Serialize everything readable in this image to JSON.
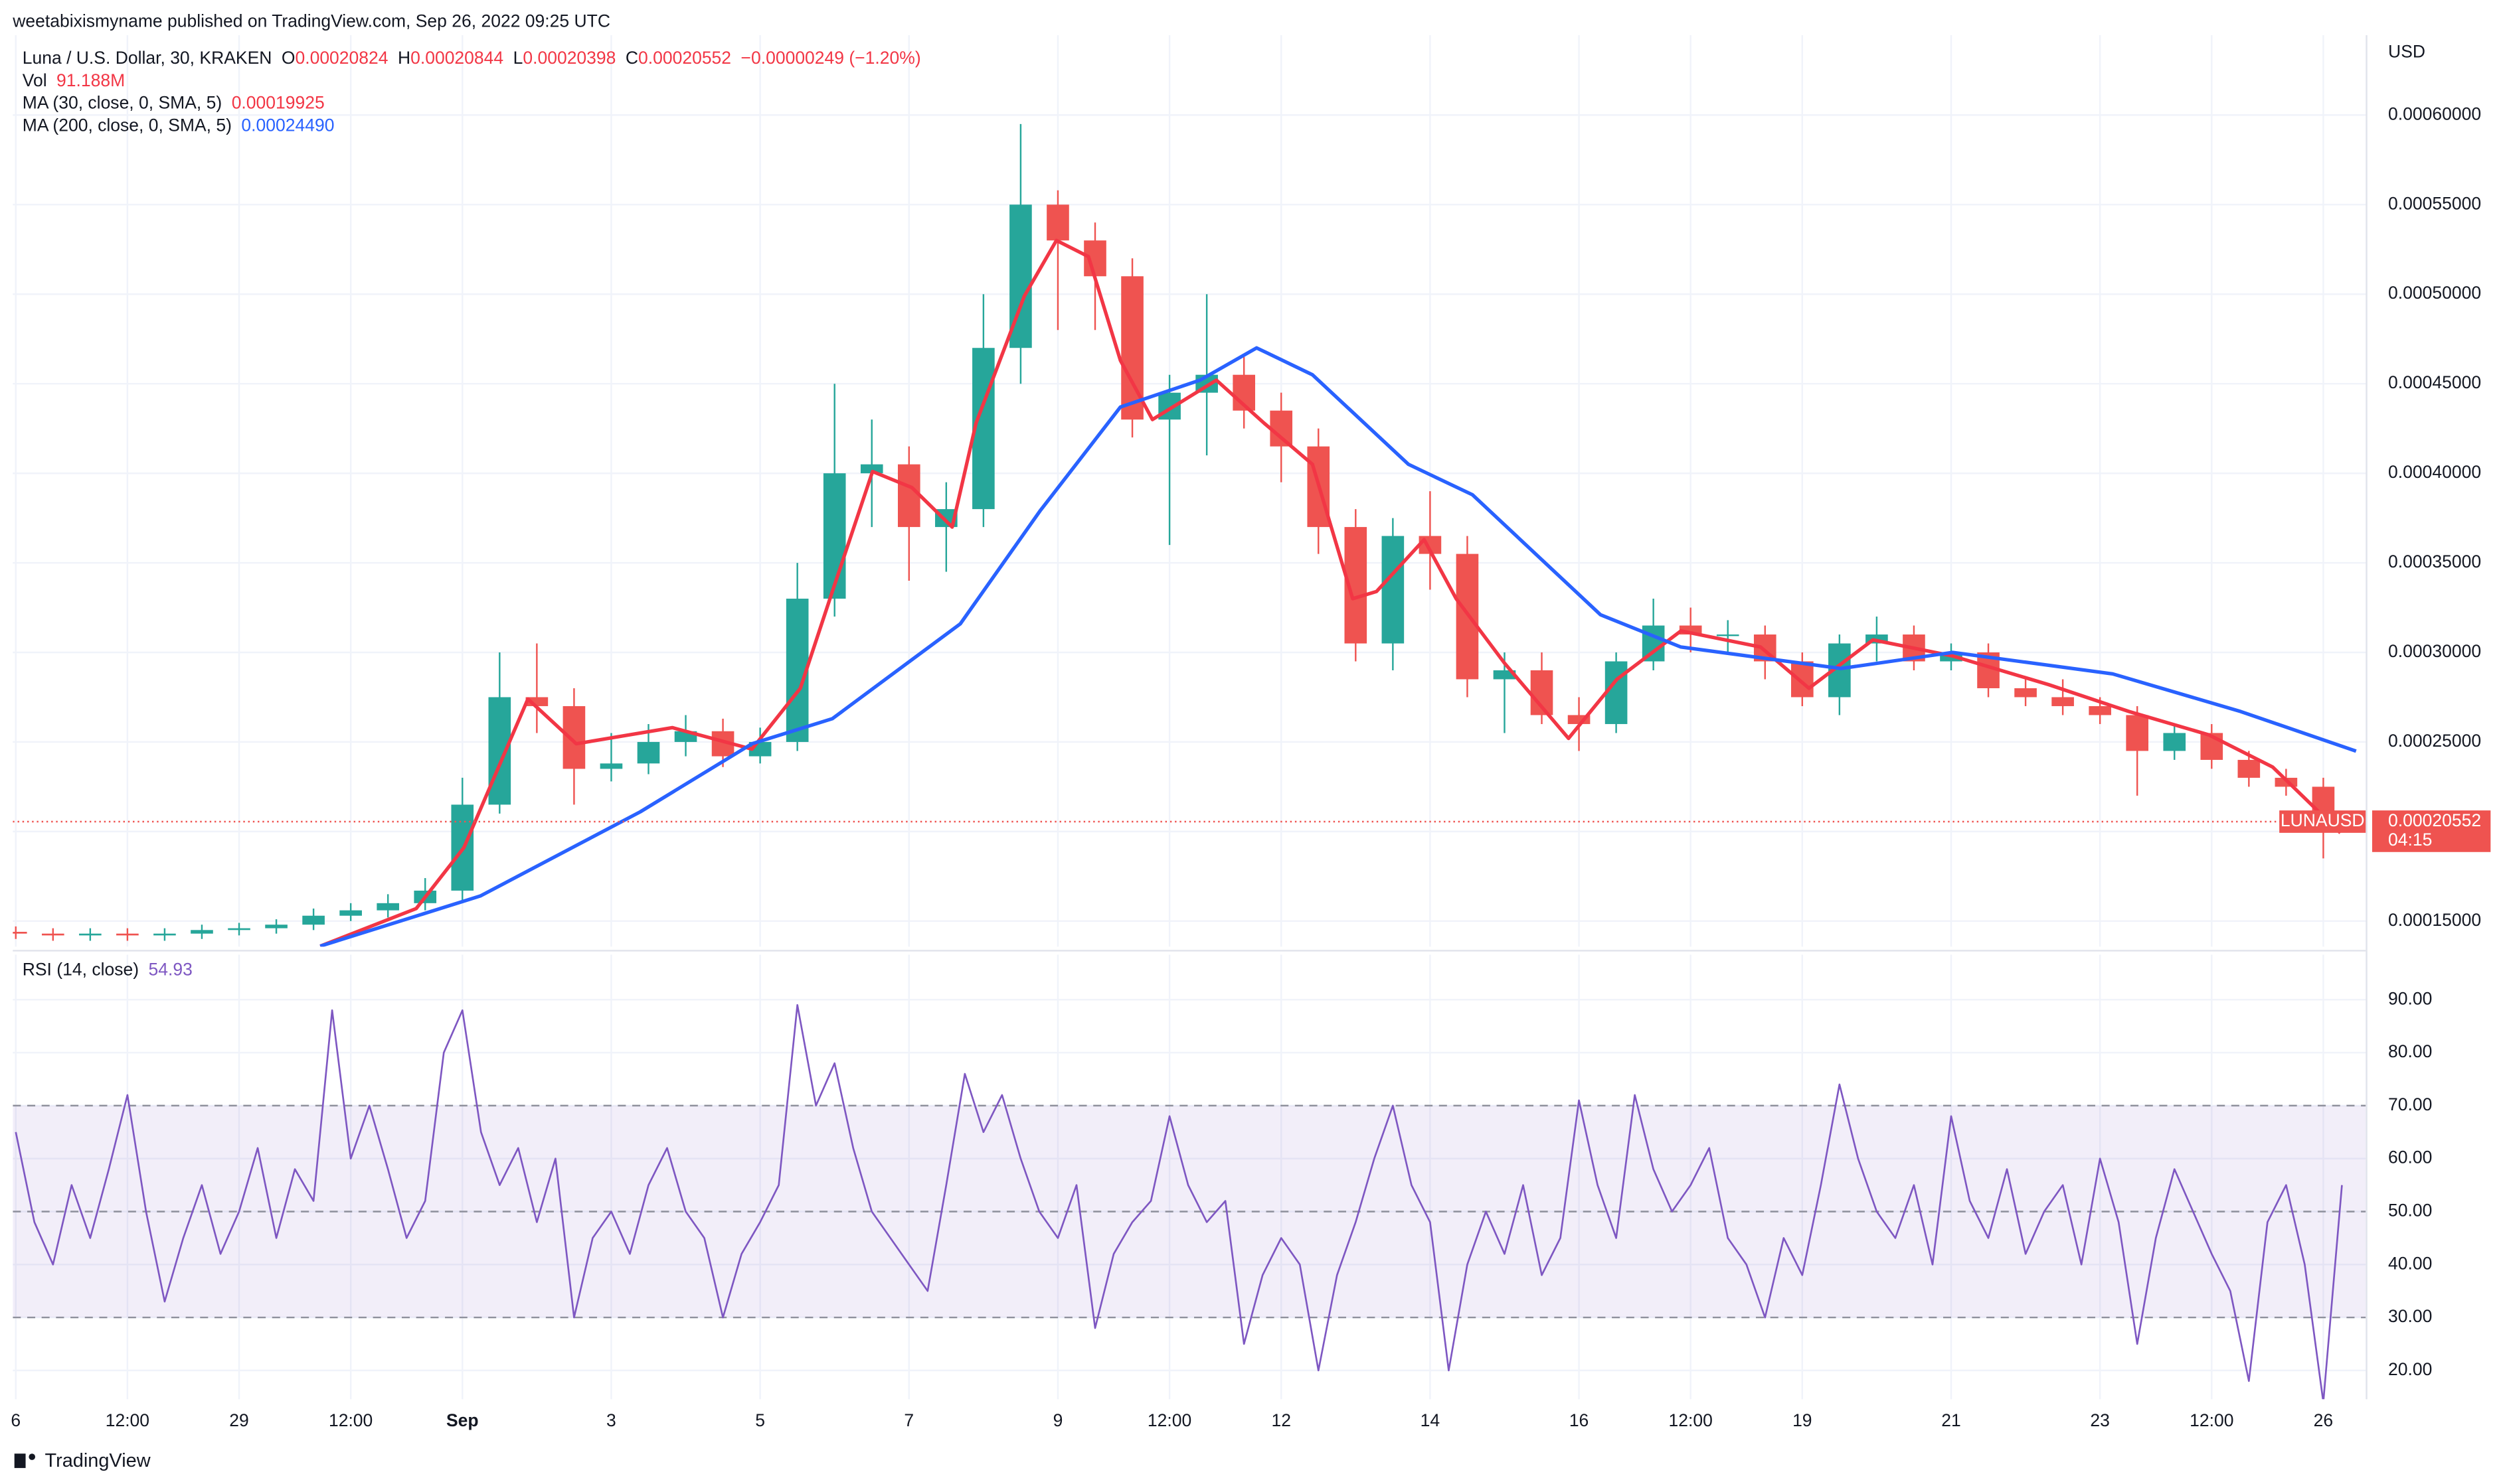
{
  "header": {
    "published": "weetabixismyname published on TradingView.com, Sep 26, 2022 09:25 UTC"
  },
  "footer": {
    "brand": "TradingView"
  },
  "chart_data": [
    {
      "type": "candlestick",
      "title": "Luna / U.S. Dollar, 30, KRAKEN",
      "ohlc_legend": [
        {
          "key": "O",
          "value": "0.00020824"
        },
        {
          "key": "H",
          "value": "0.00020844"
        },
        {
          "key": "L",
          "value": "0.00020398"
        },
        {
          "key": "C",
          "value": "0.00020552"
        }
      ],
      "change": "−0.00000249 (−1.20%)",
      "volume_label": "Vol",
      "volume_value": "91.188M",
      "ylabel": "USD",
      "up_color": "#26a69a",
      "down_color": "#ef5350",
      "xlim": [
        25.96,
        57.57
      ],
      "xticks": [
        {
          "value": 26,
          "label": "6"
        },
        {
          "value": 27.5,
          "label": "12:00"
        },
        29,
        {
          "value": 30.5,
          "label": "12:00"
        },
        {
          "value": 32,
          "label": "Sep"
        },
        {
          "value": 34,
          "label": "3"
        },
        {
          "value": 36,
          "label": "5"
        },
        {
          "value": 38,
          "label": "7"
        },
        {
          "value": 40,
          "label": "9"
        },
        {
          "value": 41.5,
          "label": "12:00"
        },
        {
          "value": 43,
          "label": "12"
        },
        {
          "value": 45,
          "label": "14"
        },
        {
          "value": 47,
          "label": "16"
        },
        {
          "value": 48.5,
          "label": "12:00"
        },
        {
          "value": 50,
          "label": "19"
        },
        {
          "value": 52,
          "label": "21"
        },
        {
          "value": 54,
          "label": "23"
        },
        {
          "value": 55.5,
          "label": "12:00"
        },
        {
          "value": 57,
          "label": "26"
        }
      ],
      "ylim": [
        0.0001357,
        0.0006446
      ],
      "yticks": [
        {
          "value": 0.00015,
          "label": "0.00015000"
        },
        {
          "value": 0.0002,
          "label": "0.00020000"
        },
        {
          "value": 0.00025,
          "label": "0.00025000"
        },
        {
          "value": 0.0003,
          "label": "0.00030000"
        },
        {
          "value": 0.00035,
          "label": "0.00035000"
        },
        {
          "value": 0.0004,
          "label": "0.00040000"
        },
        {
          "value": 0.00045,
          "label": "0.00045000"
        },
        {
          "value": 0.0005,
          "label": "0.00050000"
        },
        {
          "value": 0.00055,
          "label": "0.00055000"
        },
        {
          "value": 0.0006,
          "label": "0.00060000"
        }
      ],
      "grid": true,
      "last_price": 0.00020552,
      "symbol": "LUNAUSD",
      "countdown": "04:15",
      "candles": {
        "x": [
          26,
          26.5,
          27,
          27.5,
          28,
          28.5,
          29,
          29.5,
          30,
          30.5,
          31,
          31.5,
          32,
          32.5,
          33,
          33.5,
          34,
          34.5,
          35,
          35.5,
          36,
          36.5,
          37,
          37.5,
          38,
          38.5,
          39,
          39.5,
          40,
          40.5,
          41,
          41.5,
          42,
          42.5,
          43,
          43.5,
          44,
          44.5,
          45,
          45.5,
          46,
          46.5,
          47,
          47.5,
          48,
          48.5,
          49,
          49.5,
          50,
          50.5,
          51,
          51.5,
          52,
          52.5,
          53,
          53.5,
          54,
          54.5,
          55,
          55.5,
          56,
          56.5,
          57
        ],
        "open": [
          0.000144,
          0.000143,
          0.000142,
          0.000143,
          0.000142,
          0.000143,
          0.000145,
          0.000146,
          0.000148,
          0.000153,
          0.000156,
          0.00016,
          0.000167,
          0.000215,
          0.000275,
          0.00027,
          0.000235,
          0.000238,
          0.00025,
          0.000256,
          0.000242,
          0.00025,
          0.00033,
          0.0004,
          0.000405,
          0.00037,
          0.00038,
          0.00047,
          0.00055,
          0.00053,
          0.00051,
          0.00043,
          0.000445,
          0.000455,
          0.000435,
          0.000415,
          0.00037,
          0.000305,
          0.000365,
          0.000355,
          0.000285,
          0.00029,
          0.000265,
          0.00026,
          0.000295,
          0.000315,
          0.00031,
          0.00031,
          0.000295,
          0.000275,
          0.000305,
          0.00031,
          0.000295,
          0.0003,
          0.00028,
          0.000275,
          0.00027,
          0.000265,
          0.000245,
          0.000255,
          0.00024,
          0.00023,
          0.000225
        ],
        "high": [
          0.000147,
          0.000146,
          0.000146,
          0.000146,
          0.000146,
          0.000148,
          0.000149,
          0.000151,
          0.000157,
          0.00016,
          0.000165,
          0.000174,
          0.00023,
          0.0003,
          0.000305,
          0.00028,
          0.000255,
          0.00026,
          0.000265,
          0.000263,
          0.000258,
          0.00035,
          0.00045,
          0.00043,
          0.000415,
          0.000395,
          0.0005,
          0.000595,
          0.000558,
          0.00054,
          0.00052,
          0.000455,
          0.0005,
          0.000465,
          0.000445,
          0.000425,
          0.00038,
          0.000375,
          0.00039,
          0.000365,
          0.0003,
          0.0003,
          0.000275,
          0.0003,
          0.00033,
          0.000325,
          0.000318,
          0.000315,
          0.0003,
          0.00031,
          0.00032,
          0.000315,
          0.000305,
          0.000305,
          0.000285,
          0.000285,
          0.000275,
          0.00027,
          0.00026,
          0.00026,
          0.000245,
          0.000235,
          0.00023
        ],
        "low": [
          0.00014,
          0.000139,
          0.000139,
          0.000139,
          0.000139,
          0.00014,
          0.000142,
          0.000143,
          0.000145,
          0.00015,
          0.000152,
          0.000156,
          0.00016,
          0.00021,
          0.000255,
          0.000215,
          0.000228,
          0.000232,
          0.000242,
          0.000236,
          0.000238,
          0.000245,
          0.00032,
          0.00037,
          0.00034,
          0.000345,
          0.00037,
          0.00045,
          0.00048,
          0.00048,
          0.00042,
          0.00036,
          0.00041,
          0.000425,
          0.000395,
          0.000355,
          0.000295,
          0.00029,
          0.000335,
          0.000275,
          0.000255,
          0.00026,
          0.000245,
          0.000255,
          0.00029,
          0.0003,
          0.0003,
          0.000285,
          0.00027,
          0.000265,
          0.000295,
          0.00029,
          0.00029,
          0.000275,
          0.00027,
          0.000265,
          0.00026,
          0.00022,
          0.00024,
          0.000235,
          0.000225,
          0.00022,
          0.000185
        ],
        "close": [
          0.000143,
          0.000142,
          0.000143,
          0.000142,
          0.000143,
          0.000145,
          0.000146,
          0.000148,
          0.000153,
          0.000156,
          0.00016,
          0.000167,
          0.000215,
          0.000275,
          0.00027,
          0.000235,
          0.000238,
          0.00025,
          0.000256,
          0.000242,
          0.00025,
          0.00033,
          0.0004,
          0.000405,
          0.00037,
          0.00038,
          0.00047,
          0.00055,
          0.00053,
          0.00051,
          0.00043,
          0.000445,
          0.000455,
          0.000435,
          0.000415,
          0.00037,
          0.000305,
          0.000365,
          0.000355,
          0.000285,
          0.00029,
          0.000265,
          0.00026,
          0.000295,
          0.000315,
          0.00031,
          0.00031,
          0.000295,
          0.000275,
          0.000305,
          0.00031,
          0.000295,
          0.0003,
          0.00028,
          0.000275,
          0.00027,
          0.000265,
          0.000245,
          0.000255,
          0.00024,
          0.00023,
          0.000225,
          0.00020552
        ]
      },
      "series": [
        {
          "name": "MA (30, close, 0, SMA, 5)",
          "last": "0.00019925",
          "color": "#f23645",
          "x": [
            30.09,
            31.38,
            32.02,
            32.88,
            33.53,
            34.82,
            35.89,
            36.54,
            36.97,
            37.51,
            38.04,
            38.58,
            38.9,
            39.55,
            39.98,
            40.41,
            40.84,
            41.27,
            42.13,
            42.77,
            43.42,
            43.96,
            44.28,
            44.92,
            45.35,
            46.0,
            46.86,
            47.51,
            48.37,
            49.44,
            50.09,
            50.95,
            52.02,
            53.31,
            54.39,
            55.46,
            56.32,
            57.23
          ],
          "values": [
            0.000136,
            0.000157,
            0.000191,
            0.000274,
            0.000249,
            0.000258,
            0.000246,
            0.00028,
            0.000334,
            0.000401,
            0.000392,
            0.00037,
            0.000428,
            0.000499,
            0.00053,
            0.000521,
            0.000463,
            0.00043,
            0.000452,
            0.000428,
            0.000405,
            0.00033,
            0.000334,
            0.000363,
            0.00033,
            0.000294,
            0.000252,
            0.000285,
            0.000312,
            0.000303,
            0.00028,
            0.000307,
            0.000298,
            0.000282,
            0.000267,
            0.000254,
            0.000236,
            0.00019925
          ]
        },
        {
          "name": "MA (200, close, 0, SMA, 5)",
          "last": "0.00024490",
          "color": "#2962ff",
          "x": [
            30.09,
            32.24,
            34.39,
            35.89,
            36.97,
            38.69,
            39.76,
            40.84,
            41.91,
            42.67,
            43.42,
            44.71,
            45.57,
            47.29,
            48.37,
            50.52,
            52.02,
            54.17,
            55.89,
            57.44
          ],
          "values": [
            0.000136,
            0.000164,
            0.000211,
            0.000249,
            0.000263,
            0.000316,
            0.000379,
            0.000437,
            0.000452,
            0.00047,
            0.000455,
            0.000405,
            0.000388,
            0.000321,
            0.000303,
            0.000291,
            0.0003,
            0.000288,
            0.000267,
            0.0002449
          ]
        }
      ]
    },
    {
      "type": "line",
      "title": "RSI (14, close)",
      "last": "54.93",
      "xlim": [
        25.96,
        57.57
      ],
      "ylim": [
        14.56,
        98.5
      ],
      "yticks": [
        {
          "value": 20,
          "label": "20.00"
        },
        {
          "value": 30,
          "label": "30.00"
        },
        {
          "value": 40,
          "label": "40.00"
        },
        {
          "value": 50,
          "label": "50.00"
        },
        {
          "value": 60,
          "label": "60.00"
        },
        {
          "value": 70,
          "label": "70.00"
        },
        {
          "value": 80,
          "label": "80.00"
        },
        {
          "value": 90,
          "label": "90.00"
        }
      ],
      "levels": [
        70,
        50,
        30
      ],
      "band_color": "#7e57c2",
      "series": [
        {
          "name": "RSI",
          "color": "#7e57c2",
          "x": [
            26,
            26.25,
            26.5,
            26.75,
            27,
            27.25,
            27.5,
            27.75,
            28,
            28.25,
            28.5,
            28.75,
            29,
            29.25,
            29.5,
            29.75,
            30,
            30.25,
            30.5,
            30.75,
            31,
            31.25,
            31.5,
            31.75,
            32,
            32.25,
            32.5,
            32.75,
            33,
            33.25,
            33.5,
            33.75,
            34,
            34.25,
            34.5,
            34.75,
            35,
            35.25,
            35.5,
            35.75,
            36,
            36.25,
            36.5,
            36.75,
            37,
            37.25,
            37.5,
            37.75,
            38,
            38.25,
            38.5,
            38.75,
            39,
            39.25,
            39.5,
            39.75,
            40,
            40.25,
            40.5,
            40.75,
            41,
            41.25,
            41.5,
            41.75,
            42,
            42.25,
            42.5,
            42.75,
            43,
            43.25,
            43.5,
            43.75,
            44,
            44.25,
            44.5,
            44.75,
            45,
            45.25,
            45.5,
            45.75,
            46,
            46.25,
            46.5,
            46.75,
            47,
            47.25,
            47.5,
            47.75,
            48,
            48.25,
            48.5,
            48.75,
            49,
            49.25,
            49.5,
            49.75,
            50,
            50.25,
            50.5,
            50.75,
            51,
            51.25,
            51.5,
            51.75,
            52,
            52.25,
            52.5,
            52.75,
            53,
            53.25,
            53.5,
            53.75,
            54,
            54.25,
            54.5,
            54.75,
            55,
            55.25,
            55.5,
            55.75,
            56,
            56.25,
            56.5,
            56.75,
            57,
            57.25
          ],
          "values": [
            65,
            48,
            40,
            55,
            45,
            58,
            72,
            50,
            33,
            45,
            55,
            42,
            50,
            62,
            45,
            58,
            52,
            88,
            60,
            70,
            58,
            45,
            52,
            80,
            88,
            65,
            55,
            62,
            48,
            60,
            30,
            45,
            50,
            42,
            55,
            62,
            50,
            45,
            30,
            42,
            48,
            55,
            89,
            70,
            78,
            62,
            50,
            45,
            40,
            35,
            55,
            76,
            65,
            72,
            60,
            50,
            45,
            55,
            28,
            42,
            48,
            52,
            68,
            55,
            48,
            52,
            25,
            38,
            45,
            40,
            20,
            38,
            48,
            60,
            70,
            55,
            48,
            20,
            40,
            50,
            42,
            55,
            38,
            45,
            71,
            55,
            45,
            72,
            58,
            50,
            55,
            62,
            45,
            40,
            30,
            45,
            38,
            55,
            74,
            60,
            50,
            45,
            55,
            40,
            68,
            52,
            45,
            58,
            42,
            50,
            55,
            40,
            60,
            48,
            25,
            45,
            58,
            50,
            42,
            35,
            18,
            48,
            55,
            40,
            14,
            55
          ]
        }
      ]
    }
  ]
}
